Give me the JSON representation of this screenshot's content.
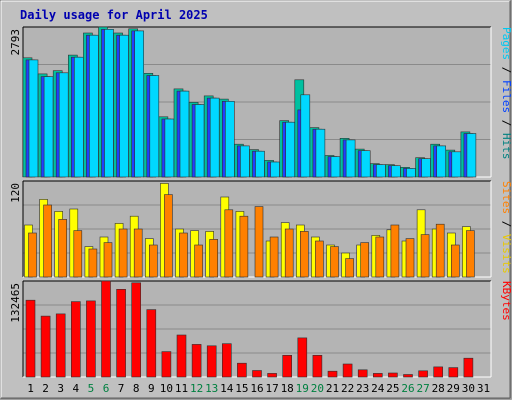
{
  "chart_data": {
    "type": "bar",
    "title": "Daily usage for April 2025",
    "x": [
      "1",
      "2",
      "3",
      "4",
      "5",
      "6",
      "7",
      "8",
      "9",
      "10",
      "11",
      "12",
      "13",
      "14",
      "15",
      "16",
      "17",
      "18",
      "19",
      "20",
      "21",
      "22",
      "23",
      "24",
      "25",
      "26",
      "27",
      "28",
      "29",
      "30",
      "31"
    ],
    "weekend_days": [
      5,
      6,
      12,
      13,
      19,
      20,
      26,
      27
    ],
    "weekend_color": "#008040",
    "weekday_color": "#000000",
    "panels": [
      {
        "id": "top",
        "max_label": "2793",
        "ylim": [
          0,
          2793
        ],
        "ylabel_parts": [
          {
            "text": "Pages",
            "color": "#00c8f0"
          },
          {
            "text": " / ",
            "color": "#000000"
          },
          {
            "text": "Files",
            "color": "#0040ff"
          },
          {
            "text": " / ",
            "color": "#000000"
          },
          {
            "text": "Hits",
            "color": "#008080"
          }
        ],
        "series": [
          {
            "name": "Hits",
            "color": "#00c0a0",
            "values": [
              2220,
              1920,
              1980,
              2270,
              2681,
              2793,
              2681,
              2760,
              1930,
              1120,
              1640,
              1390,
              1510,
              1450,
              610,
              510,
              310,
              1050,
              1810,
              920,
              400,
              720,
              520,
              250,
              230,
              180,
              360,
              610,
              500,
              840,
              0
            ]
          },
          {
            "name": "Files",
            "color": "#2040ff",
            "values": [
              2180,
              1870,
              1940,
              2230,
              2640,
              2750,
              2640,
              2720,
              1890,
              1080,
              1600,
              1350,
              1470,
              1410,
              580,
              480,
              280,
              1020,
              1250,
              890,
              380,
              690,
              490,
              230,
              210,
              160,
              340,
              580,
              470,
              810,
              0
            ]
          },
          {
            "name": "Pages",
            "color": "#00d8ff",
            "values": [
              2180,
              1870,
              1940,
              2230,
              2640,
              2750,
              2640,
              2720,
              1890,
              1080,
              1600,
              1350,
              1470,
              1410,
              580,
              480,
              280,
              1020,
              1530,
              890,
              380,
              690,
              490,
              230,
              210,
              160,
              340,
              580,
              470,
              810,
              0
            ]
          }
        ]
      },
      {
        "id": "middle",
        "max_label": "120",
        "ylim": [
          0,
          120
        ],
        "ylabel_parts": [
          {
            "text": "Sites",
            "color": "#ff8000"
          },
          {
            "text": " / ",
            "color": "#000000"
          },
          {
            "text": "Visits",
            "color": "#e8c800"
          }
        ],
        "series": [
          {
            "name": "Visits",
            "color": "#ffff00",
            "values": [
              65,
              97,
              82,
              85,
              38,
              50,
              67,
              76,
              48,
              117,
              60,
              58,
              57,
              100,
              82,
              0,
              45,
              68,
              65,
              50,
              40,
              30,
              40,
              52,
              59,
              45,
              84,
              60,
              55,
              63,
              0
            ]
          },
          {
            "name": "Sites",
            "color": "#ff8000",
            "values": [
              55,
              90,
              72,
              58,
              35,
              43,
              60,
              60,
              40,
              103,
              55,
              40,
              47,
              84,
              76,
              88,
              50,
              60,
              57,
              45,
              38,
              23,
              43,
              50,
              65,
              48,
              53,
              66,
              40,
              58,
              0
            ]
          }
        ]
      },
      {
        "id": "bottom",
        "max_label": "132465",
        "ylim": [
          0,
          132465
        ],
        "ylabel_parts": [
          {
            "text": "KBytes",
            "color": "#ff0000"
          }
        ],
        "series": [
          {
            "name": "KBytes",
            "color": "#ff0000",
            "values": [
              106000,
              84000,
              87000,
              104000,
              105000,
              132465,
              121000,
              130000,
              93000,
              35000,
              58000,
              45000,
              43000,
              46000,
              19000,
              9000,
              5000,
              30000,
              54000,
              30000,
              8000,
              18000,
              10000,
              5000,
              5500,
              3500,
              8500,
              14000,
              13000,
              26000,
              0
            ]
          }
        ]
      }
    ]
  }
}
